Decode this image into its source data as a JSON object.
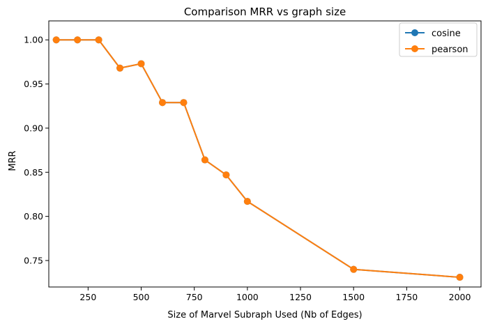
{
  "chart_data": {
    "type": "line",
    "title": "Comparison MRR vs graph size",
    "xlabel": "Size of Marvel Subraph Used (Nb of Edges)",
    "ylabel": "MRR",
    "xlim": [
      65,
      2100
    ],
    "ylim": [
      0.72,
      1.0215
    ],
    "xticks": [
      250,
      500,
      750,
      1000,
      1250,
      1500,
      1750,
      2000
    ],
    "yticks": [
      0.75,
      0.8,
      0.85,
      0.9,
      0.95,
      1.0
    ],
    "xtick_labels": [
      "250",
      "500",
      "750",
      "1000",
      "1250",
      "1500",
      "1750",
      "2000"
    ],
    "ytick_labels": [
      "0.75",
      "0.80",
      "0.85",
      "0.90",
      "0.95",
      "1.00"
    ],
    "grid": false,
    "legend_position": "top-right",
    "x": [
      100,
      200,
      300,
      400,
      500,
      600,
      700,
      800,
      900,
      1000,
      1500,
      2000
    ],
    "series": [
      {
        "name": "cosine",
        "color": "#1f77b4",
        "marker": "circle",
        "values": [
          1.0,
          1.0,
          1.0,
          0.968,
          0.973,
          0.929,
          0.929,
          0.864,
          0.847,
          0.817,
          0.74,
          0.731
        ]
      },
      {
        "name": "pearson",
        "color": "#ff7f0e",
        "marker": "circle",
        "values": [
          1.0,
          1.0,
          1.0,
          0.968,
          0.973,
          0.929,
          0.929,
          0.864,
          0.847,
          0.817,
          0.74,
          0.731
        ]
      }
    ]
  }
}
